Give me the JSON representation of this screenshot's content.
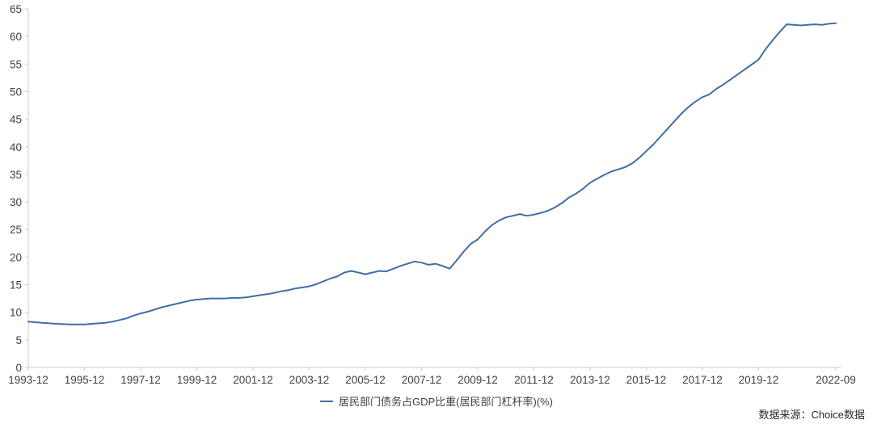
{
  "chart_data": {
    "type": "line",
    "title": "",
    "xlabel": "",
    "ylabel": "",
    "ylim": [
      0,
      65
    ],
    "grid": false,
    "legend_position": "bottom-center",
    "axis_color": "#cccccc",
    "tick_label_color": "#404040",
    "y_tick_values": [
      0,
      5,
      10,
      15,
      20,
      25,
      30,
      35,
      40,
      45,
      50,
      55,
      60,
      65
    ],
    "x_tick_labels": [
      "1993-12",
      "1995-12",
      "1997-12",
      "1999-12",
      "2001-12",
      "2003-12",
      "2005-12",
      "2007-12",
      "2009-12",
      "2011-12",
      "2013-12",
      "2015-12",
      "2017-12",
      "2019-12",
      "2022-09"
    ],
    "x_range": [
      "1993-12",
      "2022-09"
    ],
    "series": [
      {
        "name": "居民部门债务占GDP比重(居民部门杠杆率)(%)",
        "color": "#3f6fa5",
        "line_width": 2,
        "start": "1993-12",
        "frequency": "quarterly",
        "values": [
          8.3,
          8.2,
          8.1,
          8.0,
          7.9,
          7.85,
          7.8,
          7.8,
          7.8,
          7.9,
          8.0,
          8.1,
          8.3,
          8.6,
          8.9,
          9.4,
          9.8,
          10.1,
          10.5,
          10.9,
          11.2,
          11.5,
          11.8,
          12.1,
          12.3,
          12.4,
          12.5,
          12.5,
          12.5,
          12.6,
          12.6,
          12.7,
          12.9,
          13.1,
          13.3,
          13.5,
          13.8,
          14.0,
          14.3,
          14.5,
          14.7,
          15.1,
          15.6,
          16.1,
          16.5,
          17.2,
          17.5,
          17.2,
          16.9,
          17.2,
          17.5,
          17.4,
          17.9,
          18.4,
          18.8,
          19.2,
          19.0,
          18.6,
          18.8,
          18.4,
          17.9,
          19.4,
          21.0,
          22.4,
          23.2,
          24.6,
          25.8,
          26.6,
          27.2,
          27.5,
          27.8,
          27.5,
          27.7,
          28.0,
          28.4,
          29.0,
          29.8,
          30.8,
          31.5,
          32.4,
          33.5,
          34.2,
          34.9,
          35.5,
          35.9,
          36.3,
          37.0,
          38.0,
          39.2,
          40.4,
          41.8,
          43.2,
          44.6,
          46.0,
          47.2,
          48.2,
          49.0,
          49.5,
          50.5,
          51.3,
          52.2,
          53.1,
          54.0,
          54.9,
          55.8,
          57.7,
          59.3,
          60.8,
          62.2,
          62.1,
          62.0,
          62.1,
          62.2,
          62.1,
          62.3,
          62.4
        ]
      }
    ]
  },
  "legend": {
    "label": "居民部门债务占GDP比重(居民部门杠杆率)(%)",
    "marker_color": "#3f6fa5"
  },
  "footer": {
    "source": "数据来源：Choice数据"
  }
}
